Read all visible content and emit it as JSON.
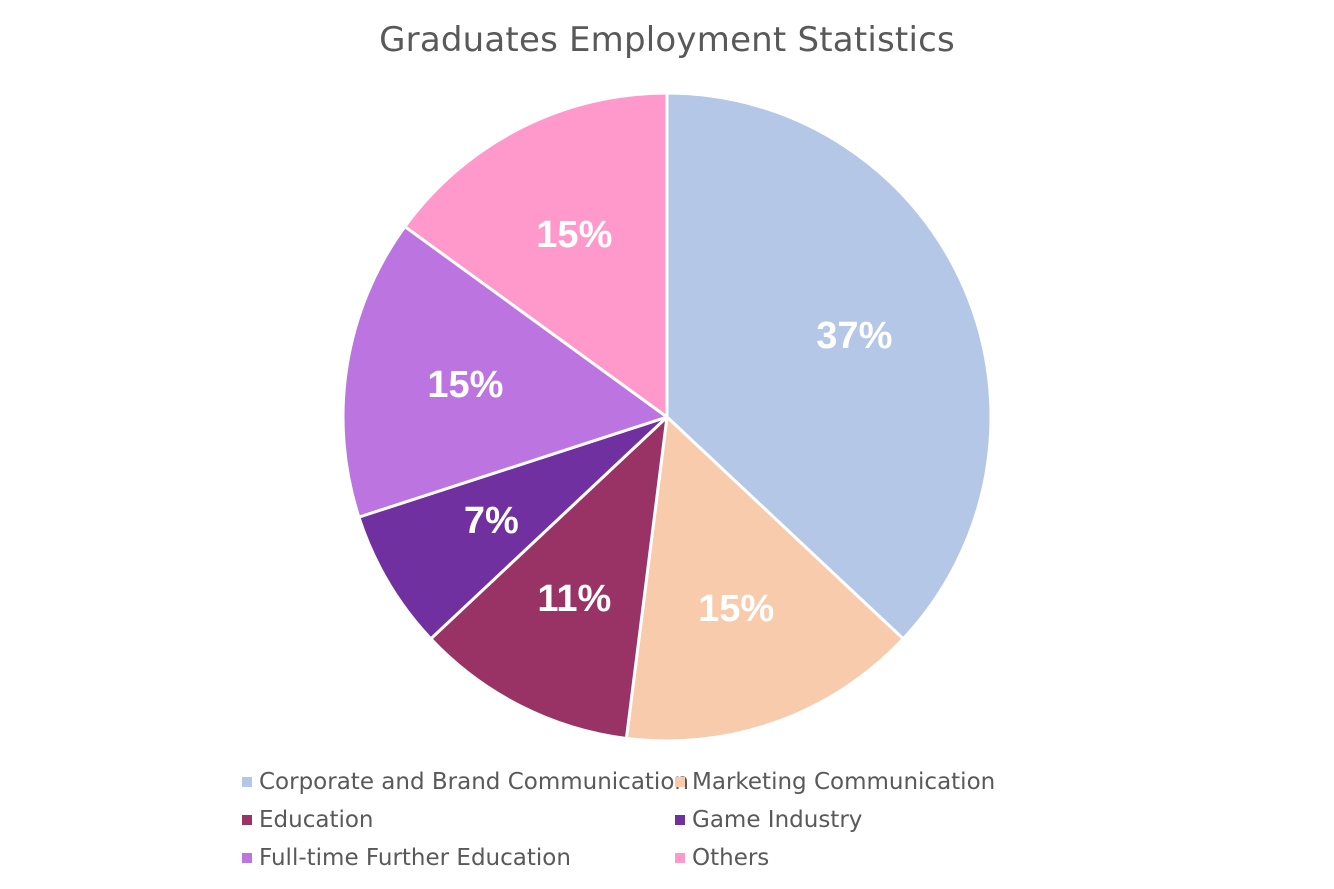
{
  "chart_data": {
    "type": "pie",
    "title": "Graduates Employment Statistics",
    "categories": [
      "Corporate and Brand Communication",
      "Marketing Communication",
      "Education",
      "Game Industry",
      "Full-time Further Education",
      "Others"
    ],
    "values": [
      37,
      15,
      11,
      7,
      15,
      15
    ],
    "value_labels": [
      "37%",
      "15%",
      "11%",
      "7%",
      "15%",
      "15%"
    ],
    "colors": [
      "#b4c7e7",
      "#f8cbad",
      "#993366",
      "#7030a0",
      "#bc74e0",
      "#ff99cc"
    ],
    "legend_position": "bottom",
    "start_angle": "top (12 o'clock), clockwise"
  }
}
